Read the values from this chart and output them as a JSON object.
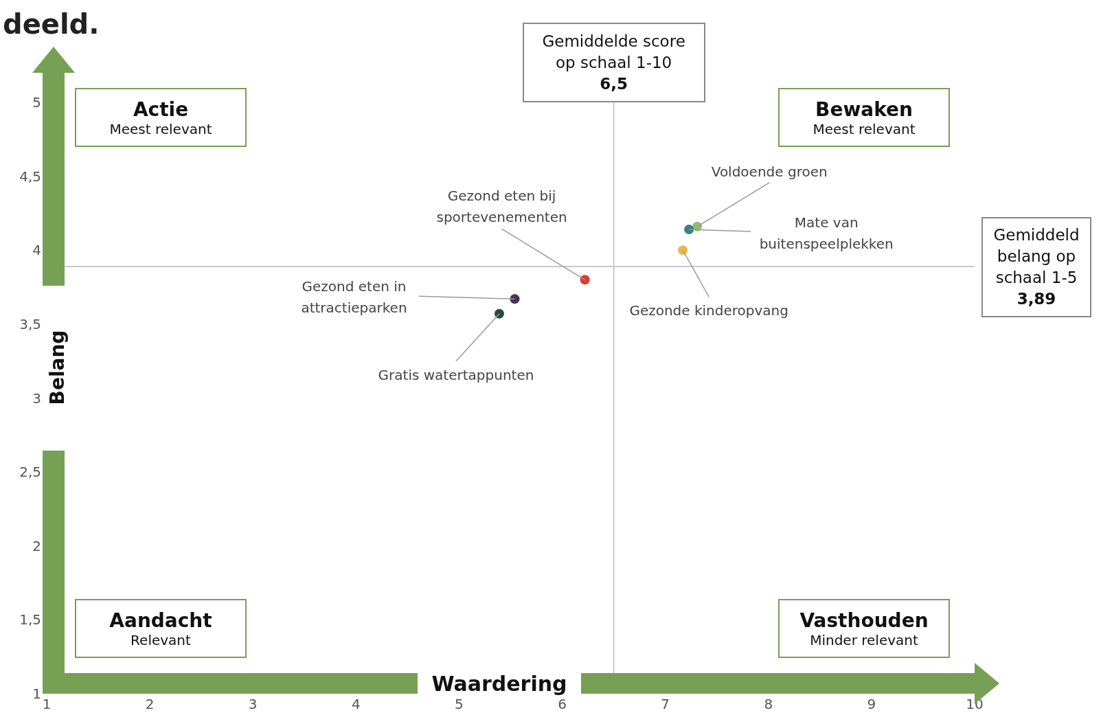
{
  "chart_data": {
    "type": "scatter",
    "title": "deeld.",
    "xlabel": "Waardering",
    "ylabel": "Belang",
    "xlim": [
      1,
      10
    ],
    "xticks": [
      1,
      2,
      3,
      4,
      5,
      6,
      7,
      8,
      9,
      10
    ],
    "ylim": [
      1,
      5
    ],
    "yticks": [
      1,
      {
        "value": 1.5,
        "label": "1,5"
      },
      2,
      {
        "value": 2.5,
        "label": "2,5"
      },
      3,
      {
        "value": 3.5,
        "label": "3,5"
      },
      4,
      {
        "value": 4.5,
        "label": "4,5"
      },
      5
    ],
    "series": [
      {
        "name": "Gezond eten bij sportevenementen",
        "color": "#e03a2a",
        "x": [
          6.22
        ],
        "values": [
          3.8
        ]
      },
      {
        "name": "Gezond eten in attractieparken",
        "color": "#4a3358",
        "x": [
          5.54
        ],
        "values": [
          3.67
        ]
      },
      {
        "name": "Gratis watertappunten",
        "color": "#284a45",
        "x": [
          5.39
        ],
        "values": [
          3.57
        ]
      },
      {
        "name": "Voldoende groen",
        "color": "#8fbf6e",
        "x": [
          7.31
        ],
        "values": [
          4.16
        ]
      },
      {
        "name": "Mate van buitenspeelplekken",
        "color": "#3e7f7d",
        "x": [
          7.23
        ],
        "values": [
          4.14
        ]
      },
      {
        "name": "Gezonde kinderopvang",
        "color": "#e8b84e",
        "x": [
          7.17
        ],
        "values": [
          4.0
        ]
      }
    ],
    "ref_lines": [
      {
        "axis": "x",
        "value": 6.5,
        "label": "Gemiddelde score\nop schaal 1-10\n6,5",
        "color": "#c8c8c8"
      },
      {
        "axis": "y",
        "value": 3.89,
        "label": "Gemiddeld\nbelang op\nschaal 1-5\n3,89",
        "color": "#c8c8c8"
      }
    ],
    "annotations": [
      "Actie\nMeest relevant",
      "Bewaken\nMeest relevant",
      "Aandacht\nRelevant",
      "Vasthouden\nMinder relevant"
    ],
    "marker": "circle"
  }
}
